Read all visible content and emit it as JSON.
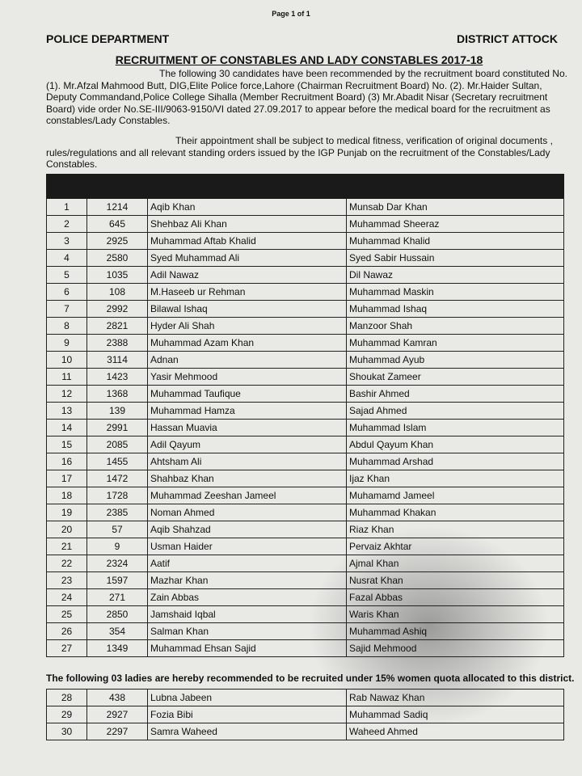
{
  "page_label": "Page 1 of 1",
  "department": "POLICE DEPARTMENT",
  "district": "DISTRICT ATTOCK",
  "title": "RECRUITMENT OF CONSTABLES AND LADY CONSTABLES 2017-18",
  "para1": "The following 30 candidates have been recommended by the recruitment board constituted No. (1). Mr.Afzal Mahmood Butt, DIG,Elite Police force,Lahore (Chairman Recruitment Board) No. (2). Mr.Haider Sultan, Deputy Commandand,Police College Sihalla (Member Recruitment Board) (3) Mr.Abadit Nisar (Secretary recruitment Board) vide order No.SE-III/9063-9150/VI dated 27.09.2017 to appear before the medical board for the recruitment as constables/Lady Constables.",
  "para2": "Their appointment shall be subject to medical fitness, verification of original documents , rules/regulations and all relevant standing orders issued by the IGP Punjab on the recruitment of the Constables/Lady Constables.",
  "ladies_note": "The following 03 ladies are hereby recommended to be recruited under 15% women quota allocated to this district.",
  "rows": [
    [
      "1",
      "1214",
      "Aqib Khan",
      "Munsab Dar Khan"
    ],
    [
      "2",
      "645",
      "Shehbaz Ali Khan",
      "Muhammad Sheeraz"
    ],
    [
      "3",
      "2925",
      "Muhammad Aftab Khalid",
      "Muhammad Khalid"
    ],
    [
      "4",
      "2580",
      "Syed Muhammad Ali",
      "Syed Sabir Hussain"
    ],
    [
      "5",
      "1035",
      "Adil Nawaz",
      "Dil Nawaz"
    ],
    [
      "6",
      "108",
      "M.Haseeb ur Rehman",
      "Muhammad Maskin"
    ],
    [
      "7",
      "2992",
      "Bilawal Ishaq",
      "Muhammad Ishaq"
    ],
    [
      "8",
      "2821",
      "Hyder Ali Shah",
      "Manzoor Shah"
    ],
    [
      "9",
      "2388",
      "Muhammad Azam Khan",
      "Muhammad Kamran"
    ],
    [
      "10",
      "3114",
      "Adnan",
      "Muhammad Ayub"
    ],
    [
      "11",
      "1423",
      "Yasir Mehmood",
      "Shoukat Zameer"
    ],
    [
      "12",
      "1368",
      "Muhammad Taufique",
      "Bashir Ahmed"
    ],
    [
      "13",
      "139",
      "Muhammad Hamza",
      "Sajad Ahmed"
    ],
    [
      "14",
      "2991",
      "Hassan Muavia",
      "Muhammad Islam"
    ],
    [
      "15",
      "2085",
      "Adil Qayum",
      "Abdul Qayum Khan"
    ],
    [
      "16",
      "1455",
      "Ahtsham Ali",
      "Muhammad Arshad"
    ],
    [
      "17",
      "1472",
      "Shahbaz Khan",
      "Ijaz Khan"
    ],
    [
      "18",
      "1728",
      "Muhammad Zeeshan Jameel",
      "Muhamamd Jameel"
    ],
    [
      "19",
      "2385",
      "Noman Ahmed",
      "Muhammad Khakan"
    ],
    [
      "20",
      "57",
      "Aqib Shahzad",
      "Riaz Khan"
    ],
    [
      "21",
      "9",
      "Usman Haider",
      "Pervaiz Akhtar"
    ],
    [
      "22",
      "2324",
      "Aatif",
      "Ajmal Khan"
    ],
    [
      "23",
      "1597",
      "Mazhar Khan",
      "Nusrat Khan"
    ],
    [
      "24",
      "271",
      "Zain Abbas",
      "Fazal Abbas"
    ],
    [
      "25",
      "2850",
      "Jamshaid Iqbal",
      "Waris Khan"
    ],
    [
      "26",
      "354",
      "Salman Khan",
      "Muhammad Ashiq"
    ],
    [
      "27",
      "1349",
      "Muhammad Ehsan Sajid",
      "Sajid Mehmood"
    ]
  ],
  "ladies_rows": [
    [
      "28",
      "438",
      "Lubna Jabeen",
      "Rab Nawaz Khan"
    ],
    [
      "29",
      "2927",
      "Fozia Bibi",
      "Muhammad Sadiq"
    ],
    [
      "30",
      "2297",
      "Samra Waheed",
      "Waheed Ahmed"
    ]
  ]
}
